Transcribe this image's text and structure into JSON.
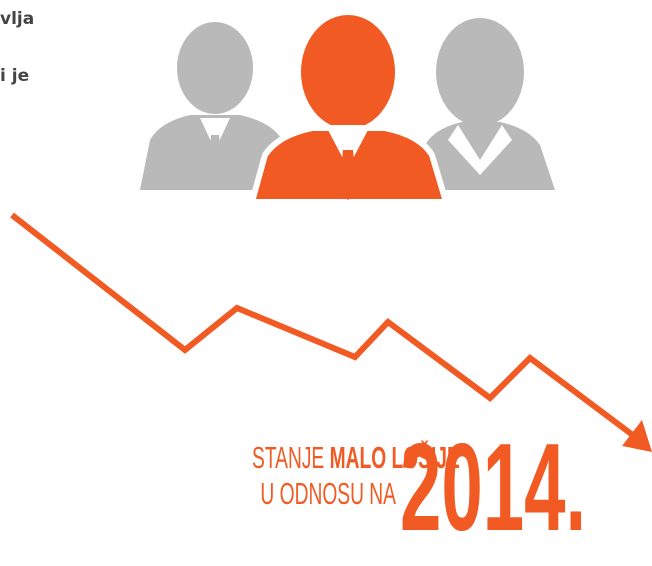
{
  "left_text": [
    "vlja",
    "i je"
  ],
  "headline": {
    "line1_prefix": "STANJE",
    "line1_bold": "MALO LOŠIJE",
    "line2": "U ODNOSU NA",
    "year": "2014."
  }
}
